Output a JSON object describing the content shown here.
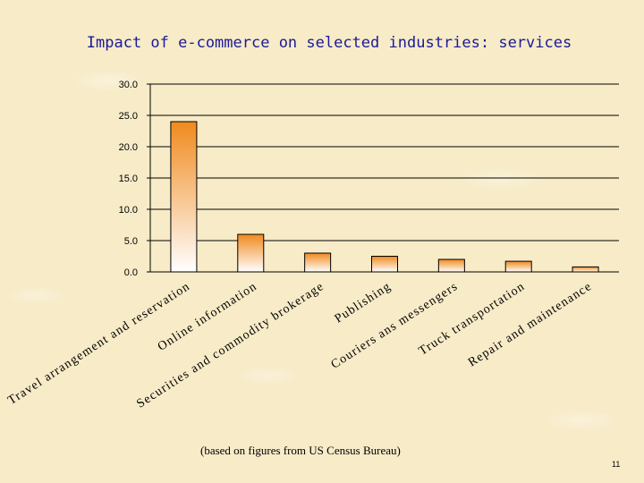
{
  "chart_data": {
    "type": "bar",
    "title": "Impact of e-commerce on selected industries: services",
    "categories": [
      "Travel arrangement and reservation",
      "Online information",
      "Securities and commodity brokerage",
      "Publishing",
      "Couriers ans messengers",
      "Truck transportation",
      "Repair and maintenance"
    ],
    "values": [
      24.0,
      6.0,
      3.0,
      2.5,
      2.0,
      1.7,
      0.8
    ],
    "ylim": [
      0,
      30
    ],
    "yticks": [
      "0.0",
      "5.0",
      "10.0",
      "15.0",
      "20.0",
      "25.0",
      "30.0"
    ],
    "xlabel": "",
    "ylabel": "",
    "grid": true,
    "colors": {
      "bar_top": "#f08a1e",
      "bar_bottom": "#ffffff",
      "bar_stroke": "#000000",
      "title": "#1a1a99"
    }
  },
  "footnote": "(based on figures from US Census Bureau)",
  "page_number": "11"
}
